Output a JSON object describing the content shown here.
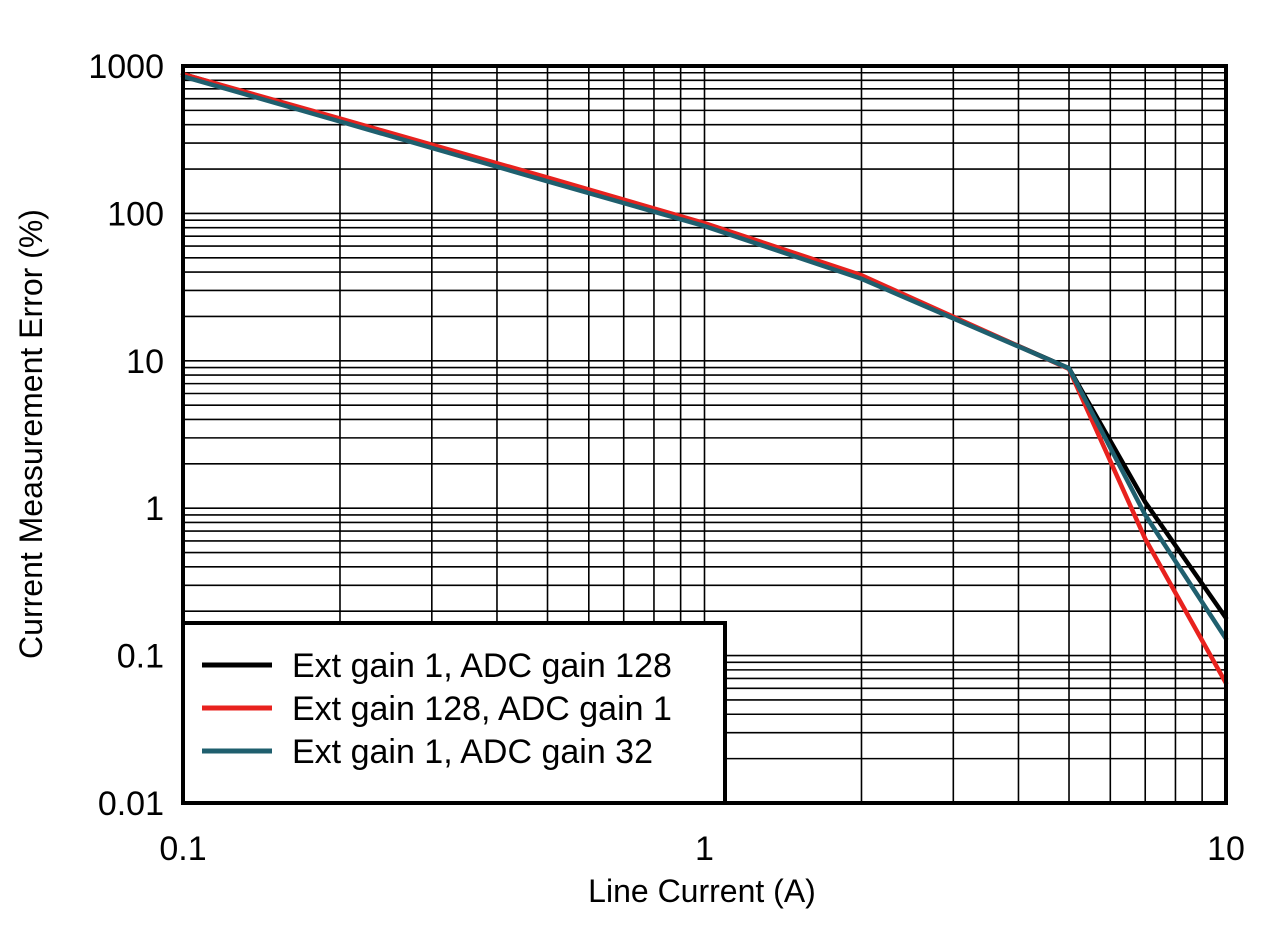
{
  "chart_data": {
    "type": "line",
    "title": "",
    "xlabel": "Line Current (A)",
    "ylabel": "Current Measurement Error (%)",
    "x_scale": "log",
    "y_scale": "log",
    "xlim": [
      0.1,
      10
    ],
    "ylim": [
      0.01,
      1000
    ],
    "x_ticks": [
      {
        "value": 0.1,
        "label": "0.1"
      },
      {
        "value": 1,
        "label": "1"
      },
      {
        "value": 10,
        "label": "10"
      }
    ],
    "y_ticks": [
      {
        "value": 1000,
        "label": "1000"
      },
      {
        "value": 100,
        "label": "100"
      },
      {
        "value": 10,
        "label": "10"
      },
      {
        "value": 1,
        "label": "1"
      },
      {
        "value": 0.1,
        "label": "0.1"
      },
      {
        "value": 0.01,
        "label": "0.01"
      }
    ],
    "grid": true,
    "legend_position": "bottom-left",
    "series": [
      {
        "name": "Ext gain 1, ADC gain 128",
        "color": "#000000",
        "x": [
          0.1,
          0.2,
          0.5,
          1,
          2,
          5,
          7,
          10
        ],
        "y": [
          880,
          430,
          170,
          84,
          37,
          8.9,
          1.1,
          0.18
        ]
      },
      {
        "name": "Ext gain 128, ADC gain 1",
        "color": "#e8221e",
        "x": [
          0.1,
          0.2,
          0.5,
          1,
          2,
          5,
          7,
          10
        ],
        "y": [
          880,
          440,
          175,
          86,
          38,
          8.8,
          0.62,
          0.065
        ]
      },
      {
        "name": "Ext gain 1, ADC gain 32",
        "color": "#1f5f6e",
        "x": [
          0.1,
          0.2,
          0.5,
          1,
          2,
          5,
          7,
          10
        ],
        "y": [
          850,
          420,
          165,
          82,
          36,
          8.9,
          0.9,
          0.13
        ]
      }
    ]
  }
}
